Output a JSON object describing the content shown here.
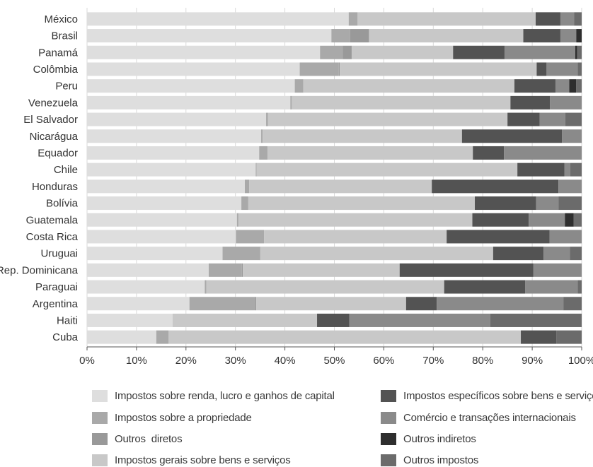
{
  "chart_data": {
    "type": "bar",
    "orientation": "horizontal",
    "stacked": true,
    "grid": true,
    "legend_position": "bottom",
    "categories": [
      "México",
      "Brasil",
      "Panamá",
      "Colômbia",
      "Peru",
      "Venezuela",
      "El Salvador",
      "Nicarágua",
      "Equador",
      "Chile",
      "Honduras",
      "Bolívia",
      "Guatemala",
      "Costa Rica",
      "Uruguai",
      "Rep. Dominicana",
      "Paraguai",
      "Argentina",
      "Haiti",
      "Cuba"
    ],
    "xlim": [
      0,
      100
    ],
    "xticks": [
      "0%",
      "10%",
      "20%",
      "30%",
      "40%",
      "50%",
      "60%",
      "70%",
      "80%",
      "90%",
      "100%"
    ],
    "series": [
      {
        "name": "Impostos sobre renda, lucro e ganhos de capital",
        "color": "#dedede",
        "values": [
          52.9,
          49.4,
          47.1,
          43.0,
          42.0,
          41.1,
          36.2,
          35.2,
          34.8,
          34.1,
          31.9,
          31.2,
          30.3,
          30.1,
          27.4,
          24.6,
          23.8,
          20.7,
          17.3,
          14.0
        ]
      },
      {
        "name": "Impostos sobre a propriedade",
        "color": "#a9a9a9",
        "values": [
          1.8,
          3.8,
          4.6,
          7.9,
          1.7,
          0.3,
          0.4,
          0.3,
          1.7,
          0.2,
          0.9,
          1.4,
          0.3,
          5.7,
          7.4,
          6.7,
          0.3,
          13.3,
          0.0,
          2.5
        ]
      },
      {
        "name": "Outros  diretos",
        "color": "#999999",
        "values": [
          0.0,
          3.8,
          1.8,
          0.2,
          0.0,
          0.0,
          0.0,
          0.0,
          0.0,
          0.0,
          0.0,
          0.0,
          0.0,
          0.0,
          0.2,
          0.2,
          0.0,
          0.2,
          0.0,
          0.0
        ]
      },
      {
        "name": "Impostos gerais sobre bens e serviços",
        "color": "#c8c8c8",
        "values": [
          36.0,
          31.2,
          20.5,
          39.8,
          42.7,
          44.2,
          48.4,
          40.3,
          41.5,
          52.7,
          36.9,
          45.8,
          47.3,
          36.9,
          47.1,
          31.7,
          48.1,
          30.3,
          29.2,
          71.2
        ]
      },
      {
        "name": "Impostos específicos sobre bens e serviços",
        "color": "#535353",
        "values": [
          5.0,
          7.5,
          10.4,
          2.0,
          8.3,
          8.0,
          6.5,
          20.2,
          6.3,
          9.5,
          25.6,
          12.4,
          11.4,
          20.8,
          10.2,
          27.0,
          16.4,
          6.2,
          6.5,
          7.2
        ]
      },
      {
        "name": "Comércio e transações internacionais",
        "color": "#8a8a8a",
        "values": [
          2.8,
          3.2,
          14.3,
          6.3,
          2.8,
          6.4,
          5.2,
          4.0,
          15.7,
          1.2,
          5.0,
          4.5,
          7.3,
          6.5,
          5.3,
          9.8,
          10.6,
          25.6,
          28.5,
          0.0
        ]
      },
      {
        "name": "Outros indiretos",
        "color": "#2e2e2e",
        "values": [
          0.0,
          1.1,
          0.4,
          0.0,
          1.4,
          0.0,
          0.0,
          0.0,
          0.0,
          0.0,
          0.0,
          0.0,
          1.8,
          0.0,
          0.0,
          0.0,
          0.0,
          0.0,
          0.0,
          0.0
        ]
      },
      {
        "name": "Outros impostos",
        "color": "#6b6b6b",
        "values": [
          1.5,
          0.0,
          0.9,
          0.8,
          1.1,
          0.0,
          3.3,
          0.0,
          0.0,
          2.3,
          0.0,
          4.7,
          1.6,
          0.0,
          2.4,
          0.0,
          0.8,
          3.7,
          18.5,
          5.1
        ]
      }
    ]
  },
  "legend": {
    "items": [
      {
        "label": "Impostos sobre renda, lucro e ganhos de capital",
        "color": "#dedede"
      },
      {
        "label": "Impostos específicos sobre bens e serviços",
        "color": "#535353"
      },
      {
        "label": "Impostos sobre a propriedade",
        "color": "#a9a9a9"
      },
      {
        "label": "Comércio e transações internacionais",
        "color": "#8a8a8a"
      },
      {
        "label": "Outros  diretos",
        "color": "#999999"
      },
      {
        "label": "Outros indiretos",
        "color": "#2e2e2e"
      },
      {
        "label": "Impostos gerais sobre bens e serviços",
        "color": "#c8c8c8"
      },
      {
        "label": "Outros impostos",
        "color": "#6b6b6b"
      }
    ]
  }
}
